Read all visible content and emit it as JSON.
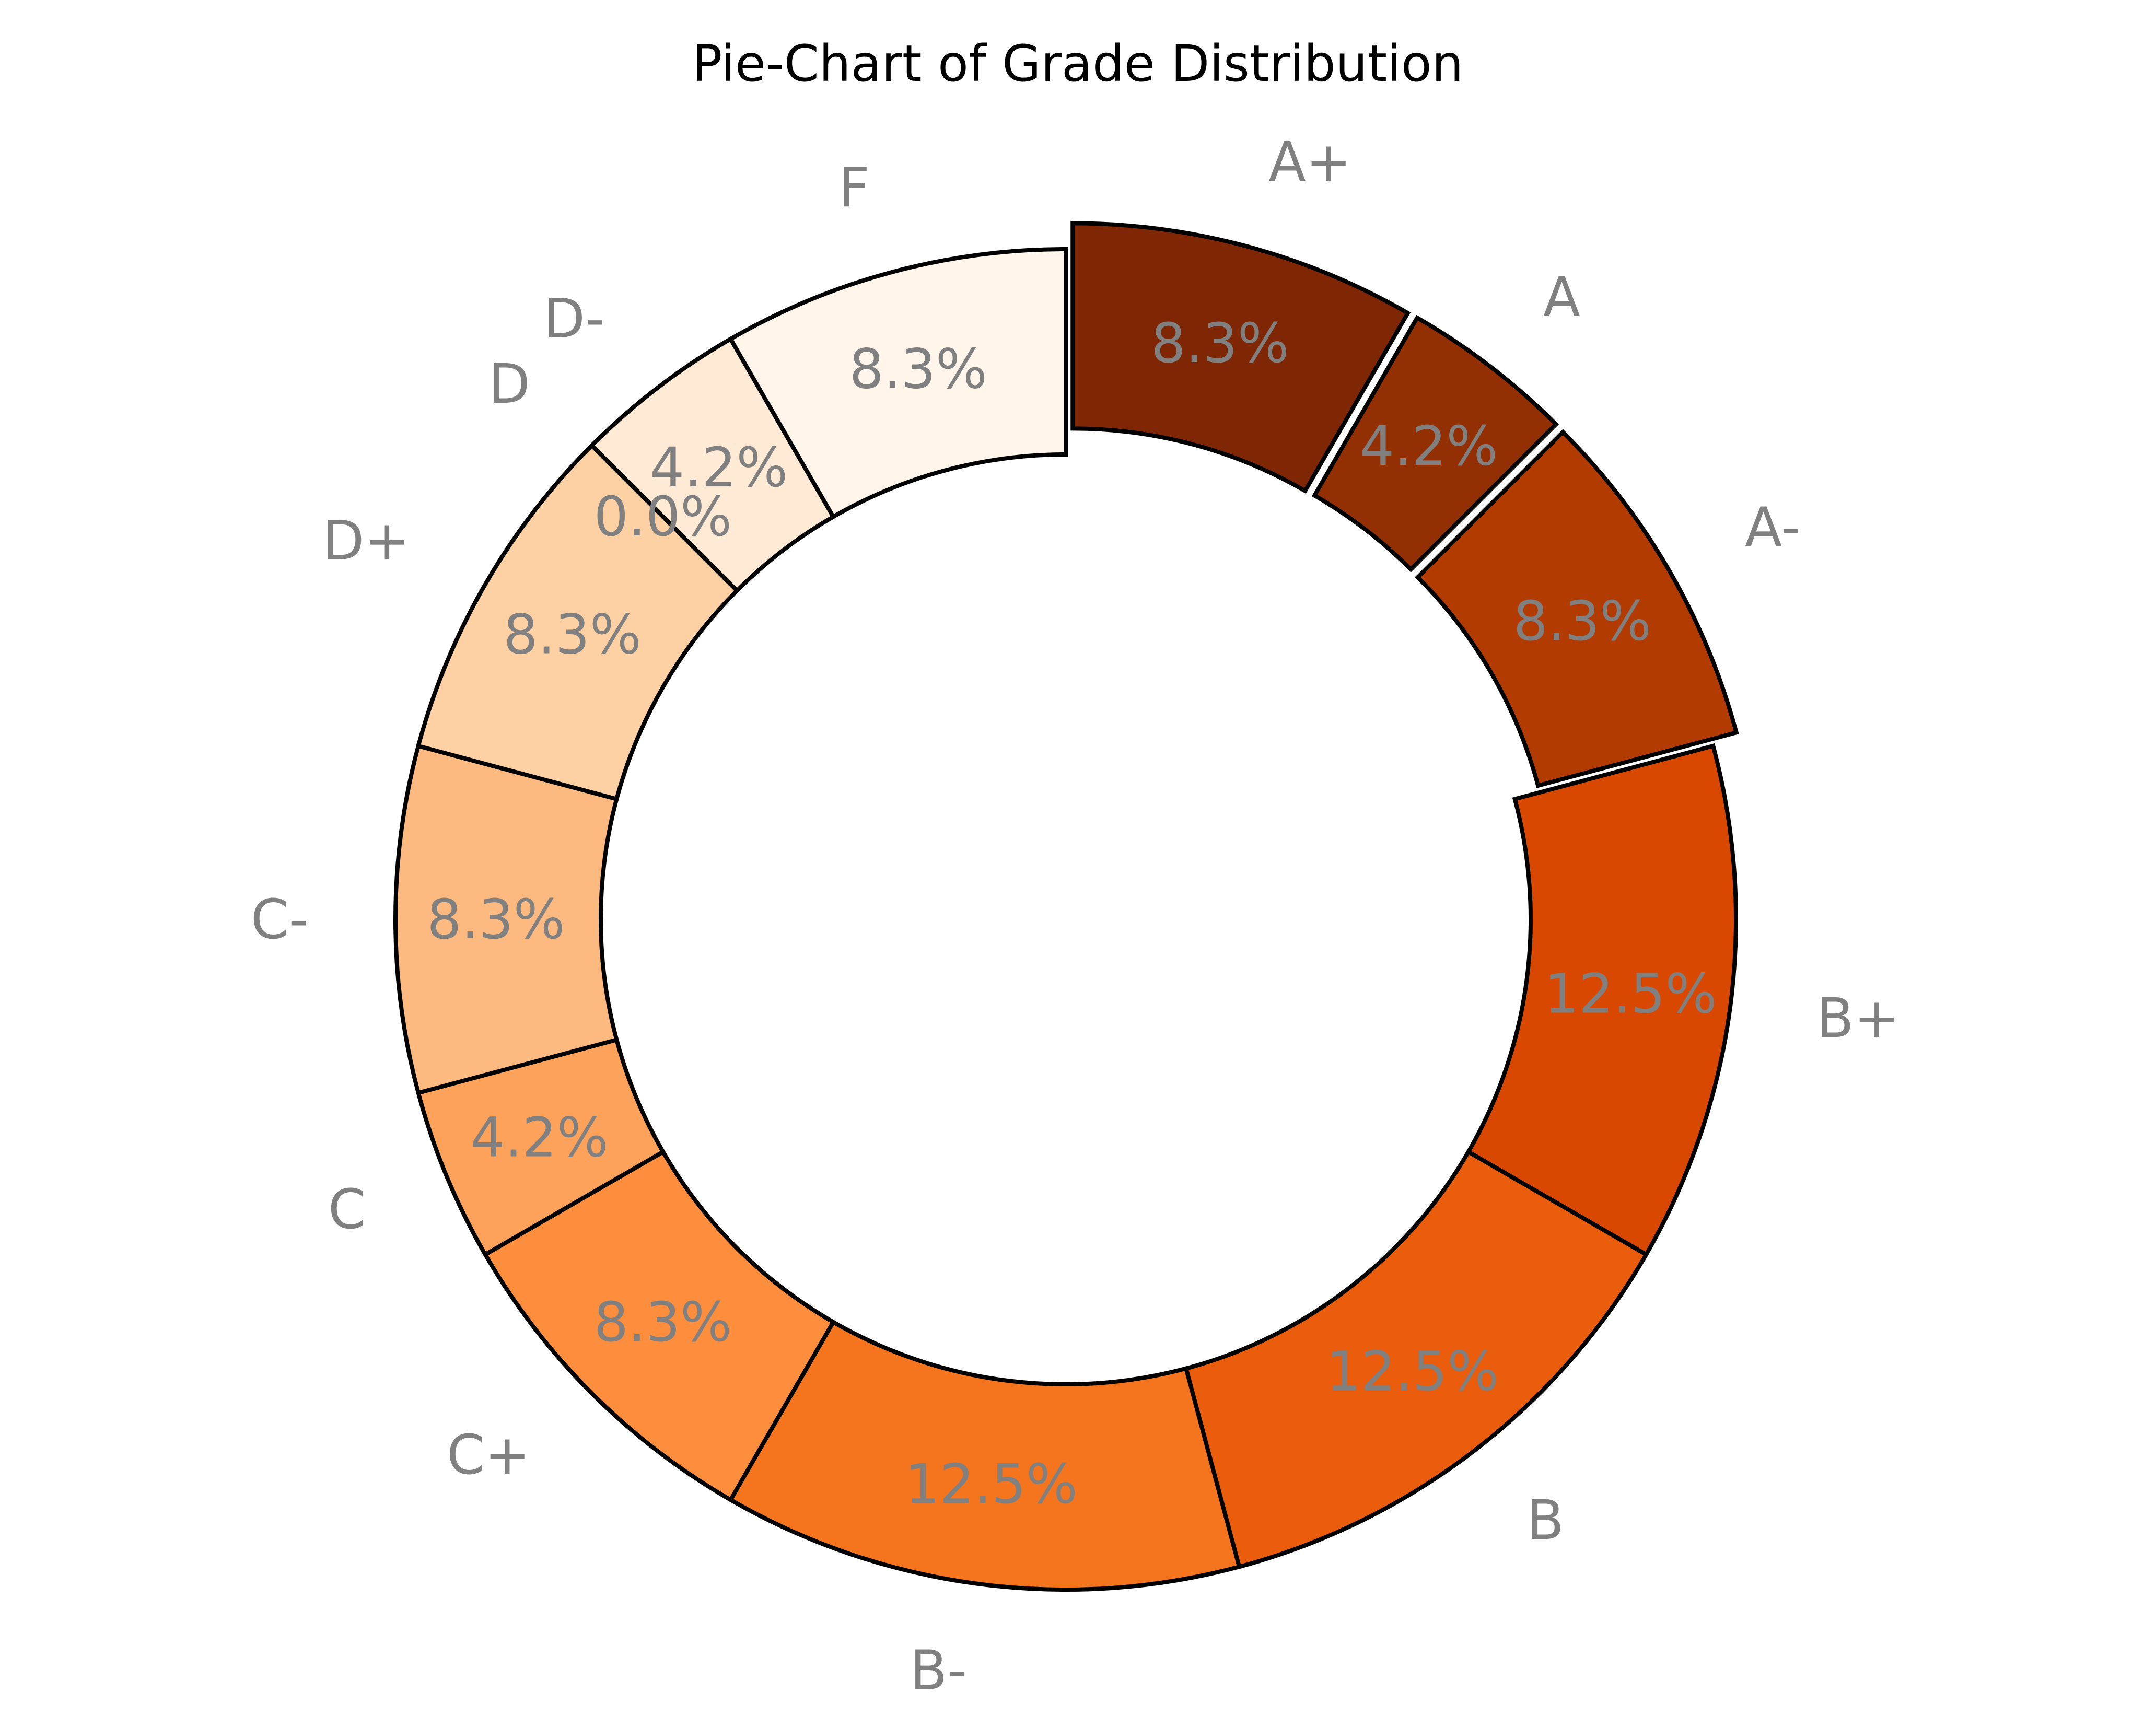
{
  "chart_data": {
    "type": "pie",
    "style": "donut",
    "title": "Pie-Chart of Grade Distribution",
    "categories": [
      "A+",
      "A",
      "A-",
      "B+",
      "B",
      "B-",
      "C+",
      "C",
      "C-",
      "D+",
      "D",
      "D-",
      "F"
    ],
    "values": [
      2,
      1,
      2,
      3,
      3,
      3,
      2,
      1,
      2,
      2,
      0,
      1,
      2
    ],
    "percent_labels": [
      "8.3%",
      "4.2%",
      "8.3%",
      "12.5%",
      "12.5%",
      "12.5%",
      "8.3%",
      "4.2%",
      "8.3%",
      "8.3%",
      "0.0%",
      "4.2%",
      "8.3%"
    ],
    "exploded": [
      true,
      true,
      true,
      false,
      false,
      false,
      false,
      false,
      false,
      false,
      false,
      false,
      false
    ],
    "start_angle_deg": 90,
    "direction": "clockwise",
    "colors": [
      "#7f2704",
      "#922f03",
      "#b23b02",
      "#d94801",
      "#e95d0c",
      "#f4751e",
      "#fd8e3d",
      "#fda25a",
      "#fdba80",
      "#fdd1a3",
      "#fedcb8",
      "#feead5",
      "#fff5eb"
    ],
    "edge_color": "#000000",
    "label_color": "#808080"
  }
}
